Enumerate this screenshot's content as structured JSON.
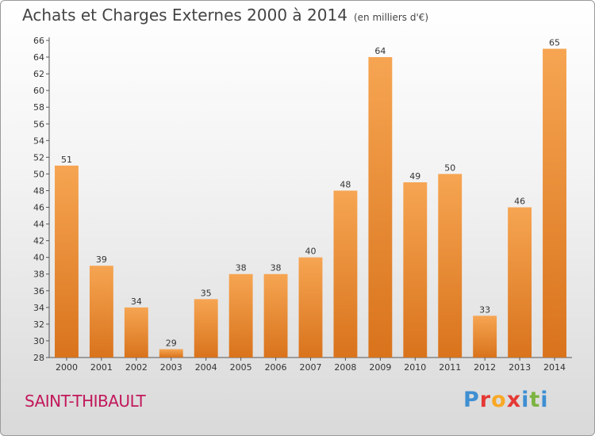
{
  "title": "Achats et Charges Externes 2000 à 2014",
  "unit": "(en milliers d'€)",
  "city": "SAINT-THIBAULT",
  "logo": {
    "text": "Proxiti",
    "letter_colors": [
      "#3f8fd2",
      "#e53935",
      "#f9a825",
      "#e53935",
      "#3f8fd2",
      "#7cb342",
      "#3f8fd2"
    ]
  },
  "colors": {
    "bar_light": "#f6a552",
    "bar_dark": "#d9731c",
    "axis": "#555555"
  },
  "chart_data": {
    "type": "bar",
    "categories": [
      "2000",
      "2001",
      "2002",
      "2003",
      "2004",
      "2005",
      "2006",
      "2007",
      "2008",
      "2009",
      "2010",
      "2011",
      "2012",
      "2013",
      "2014"
    ],
    "values": [
      51,
      39,
      34,
      29,
      35,
      38,
      38,
      40,
      48,
      64,
      49,
      50,
      33,
      46,
      65
    ],
    "ylim": [
      28,
      66
    ],
    "yticks": [
      28,
      30,
      32,
      34,
      36,
      38,
      40,
      42,
      44,
      46,
      48,
      50,
      52,
      54,
      56,
      58,
      60,
      62,
      64,
      66
    ],
    "grid": false,
    "data_labels": true
  }
}
